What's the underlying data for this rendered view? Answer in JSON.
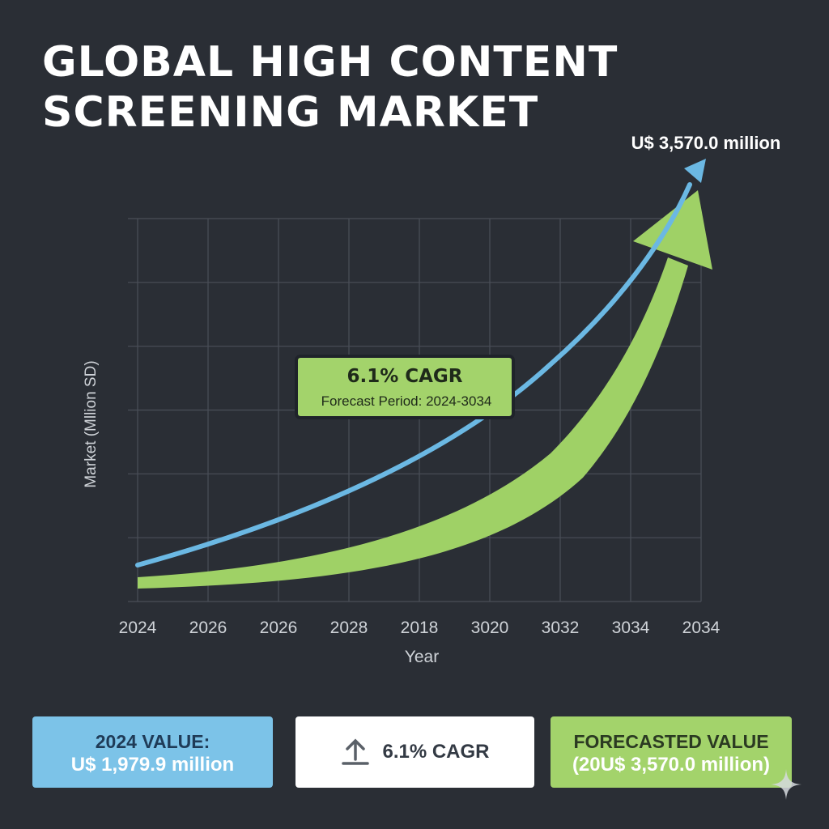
{
  "title": "GLOBAL HIGH CONTENT SCREENING MARKET",
  "chart_data": {
    "type": "line",
    "title": "GLOBAL HIGH CONTENT SCREENING MARKET",
    "xlabel": "Year",
    "ylabel": "Market (Mllion  SD)",
    "categories": [
      "2024",
      "2026",
      "2026",
      "2028",
      "2018",
      "3020",
      "3032",
      "3034",
      "2034"
    ],
    "grid": true,
    "y_ticks_labeled": false,
    "end_value_label": "U$ 3,570.0 million",
    "annotation": {
      "line1": "6.1% CAGR",
      "line2": "Forecast Period: 2024-3034"
    },
    "series": [
      {
        "style": "thin-line",
        "color": "#6bb8e3",
        "shape": "exponential-rise-to-top-right-arrowhead"
      },
      {
        "style": "wide-arrow",
        "color": "#9fd166",
        "shape": "exponential-rise-to-top-right-arrowhead"
      }
    ]
  },
  "cards": {
    "value_2024": {
      "line1": "2024 VALUE:",
      "line2": "U$ 1,979.9 million",
      "color": "#7cc3e8"
    },
    "cagr": {
      "label": "6.1% CAGR",
      "icon": "upload-arrow-icon",
      "color": "#ffffff"
    },
    "forecast": {
      "line1": "FORECASTED VALUE",
      "line2": "(20U$ 3,570.0 million)",
      "color": "#a3d36b"
    }
  },
  "colors": {
    "background": "#2a2e35",
    "grid": "#4a4f58",
    "blue": "#6bb8e3",
    "green": "#9fd166"
  }
}
